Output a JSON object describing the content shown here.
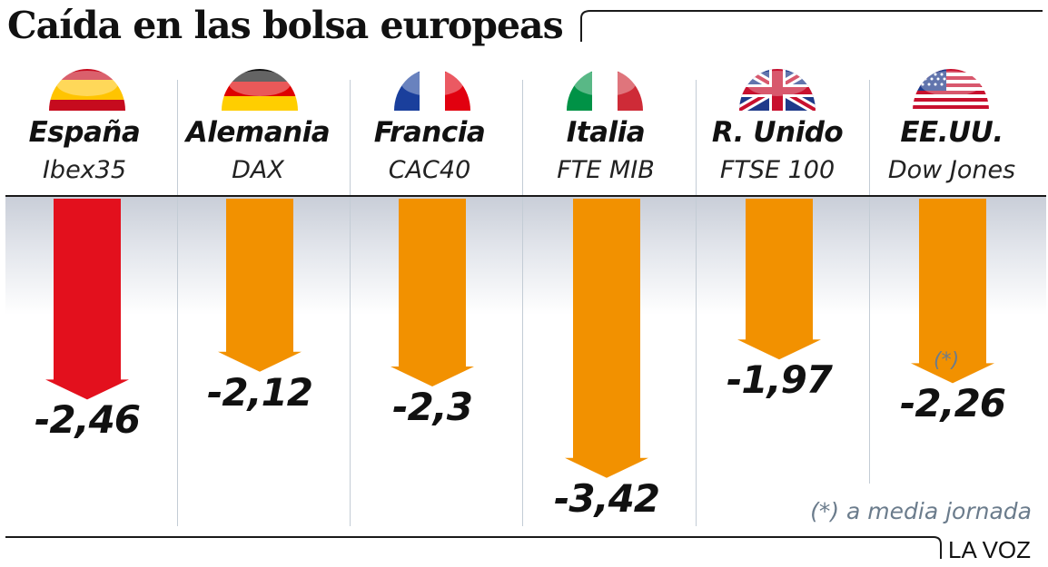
{
  "title": "Caída en las bolsa europeas",
  "footnote": "(*) a media jornada",
  "source": "LA VOZ",
  "colors": {
    "red_arrow": "#e3101d",
    "orange_arrow": "#f29100",
    "text": "#111111",
    "muted": "#6b7c8c",
    "separator": "#c3ccd5"
  },
  "columns": [
    {
      "country": "España",
      "index": "Ibex35",
      "value_label": "-2,46",
      "flag": "spain-flag-icon",
      "arrow_color": "red"
    },
    {
      "country": "Alemania",
      "index": "DAX",
      "value_label": "-2,12",
      "flag": "germany-flag-icon",
      "arrow_color": "orange"
    },
    {
      "country": "Francia",
      "index": "CAC40",
      "value_label": "-2,3",
      "flag": "france-flag-icon",
      "arrow_color": "orange"
    },
    {
      "country": "Italia",
      "index": "FTE MIB",
      "value_label": "-3,42",
      "flag": "italy-flag-icon",
      "arrow_color": "orange"
    },
    {
      "country": "R. Unido",
      "index": "FTSE 100",
      "value_label": "-1,97",
      "flag": "uk-flag-icon",
      "arrow_color": "orange"
    },
    {
      "country": "EE.UU.",
      "index": "Dow Jones",
      "value_label": "-2,26",
      "flag": "usa-flag-icon",
      "arrow_color": "orange",
      "asterisk": "(*)"
    }
  ],
  "chart_data": {
    "type": "bar",
    "title": "Caída en las bolsa europeas",
    "categories": [
      "España",
      "Alemania",
      "Francia",
      "Italia",
      "R. Unido",
      "EE.UU."
    ],
    "subcategories": [
      "Ibex35",
      "DAX",
      "CAC40",
      "FTE MIB",
      "FTSE 100",
      "Dow Jones"
    ],
    "values": [
      -2.46,
      -2.12,
      -2.3,
      -3.42,
      -1.97,
      -2.26
    ],
    "value_labels": [
      "-2,46",
      "-2,12",
      "-2,3",
      "-3,42",
      "-1,97",
      "-2,26"
    ],
    "orientation": "downward arrows",
    "highlight": "España",
    "grid": false,
    "legend": "none"
  }
}
